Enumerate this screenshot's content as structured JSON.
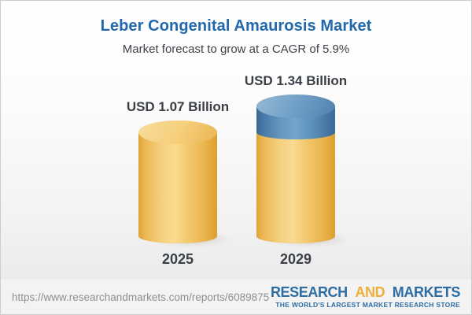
{
  "header": {
    "title": "Leber Congenital Amaurosis Market",
    "subtitle": "Market forecast to grow at a CAGR of 5.9%"
  },
  "chart_data": {
    "type": "bar",
    "variant": "3d-cylinder",
    "title": "Leber Congenital Amaurosis Market",
    "subtitle": "Market forecast to grow at a CAGR of 5.9%",
    "cagr_percent": 5.9,
    "unit": "USD Billion",
    "categories": [
      "2025",
      "2029"
    ],
    "values": [
      1.07,
      1.34
    ],
    "bars": [
      {
        "category": "2025",
        "value": 1.07,
        "label": "USD 1.07 Billion",
        "segments": [
          {
            "name": "base",
            "value": 1.07,
            "color": "#f2c76f"
          }
        ]
      },
      {
        "category": "2029",
        "value": 1.34,
        "label": "USD 1.34 Billion",
        "segments": [
          {
            "name": "base",
            "value": 1.07,
            "color": "#f2c76f"
          },
          {
            "name": "growth",
            "value": 0.27,
            "color": "#5d92bd"
          }
        ]
      }
    ],
    "ylim": [
      0,
      1.34
    ],
    "grid": false,
    "legend": false
  },
  "footer": {
    "url": "https://www.researchandmarkets.com/reports/6089875",
    "logo": {
      "research": "RESEARCH",
      "and": "AND",
      "markets": "MARKETS",
      "tagline": "THE WORLD'S LARGEST MARKET RESEARCH STORE"
    },
    "colors": {
      "logo_blue": "#2e6da4",
      "logo_gold": "#efae3c",
      "title_blue": "#2268ad",
      "bar_gold": "#f2c76f",
      "bar_blue": "#5d92bd"
    }
  }
}
